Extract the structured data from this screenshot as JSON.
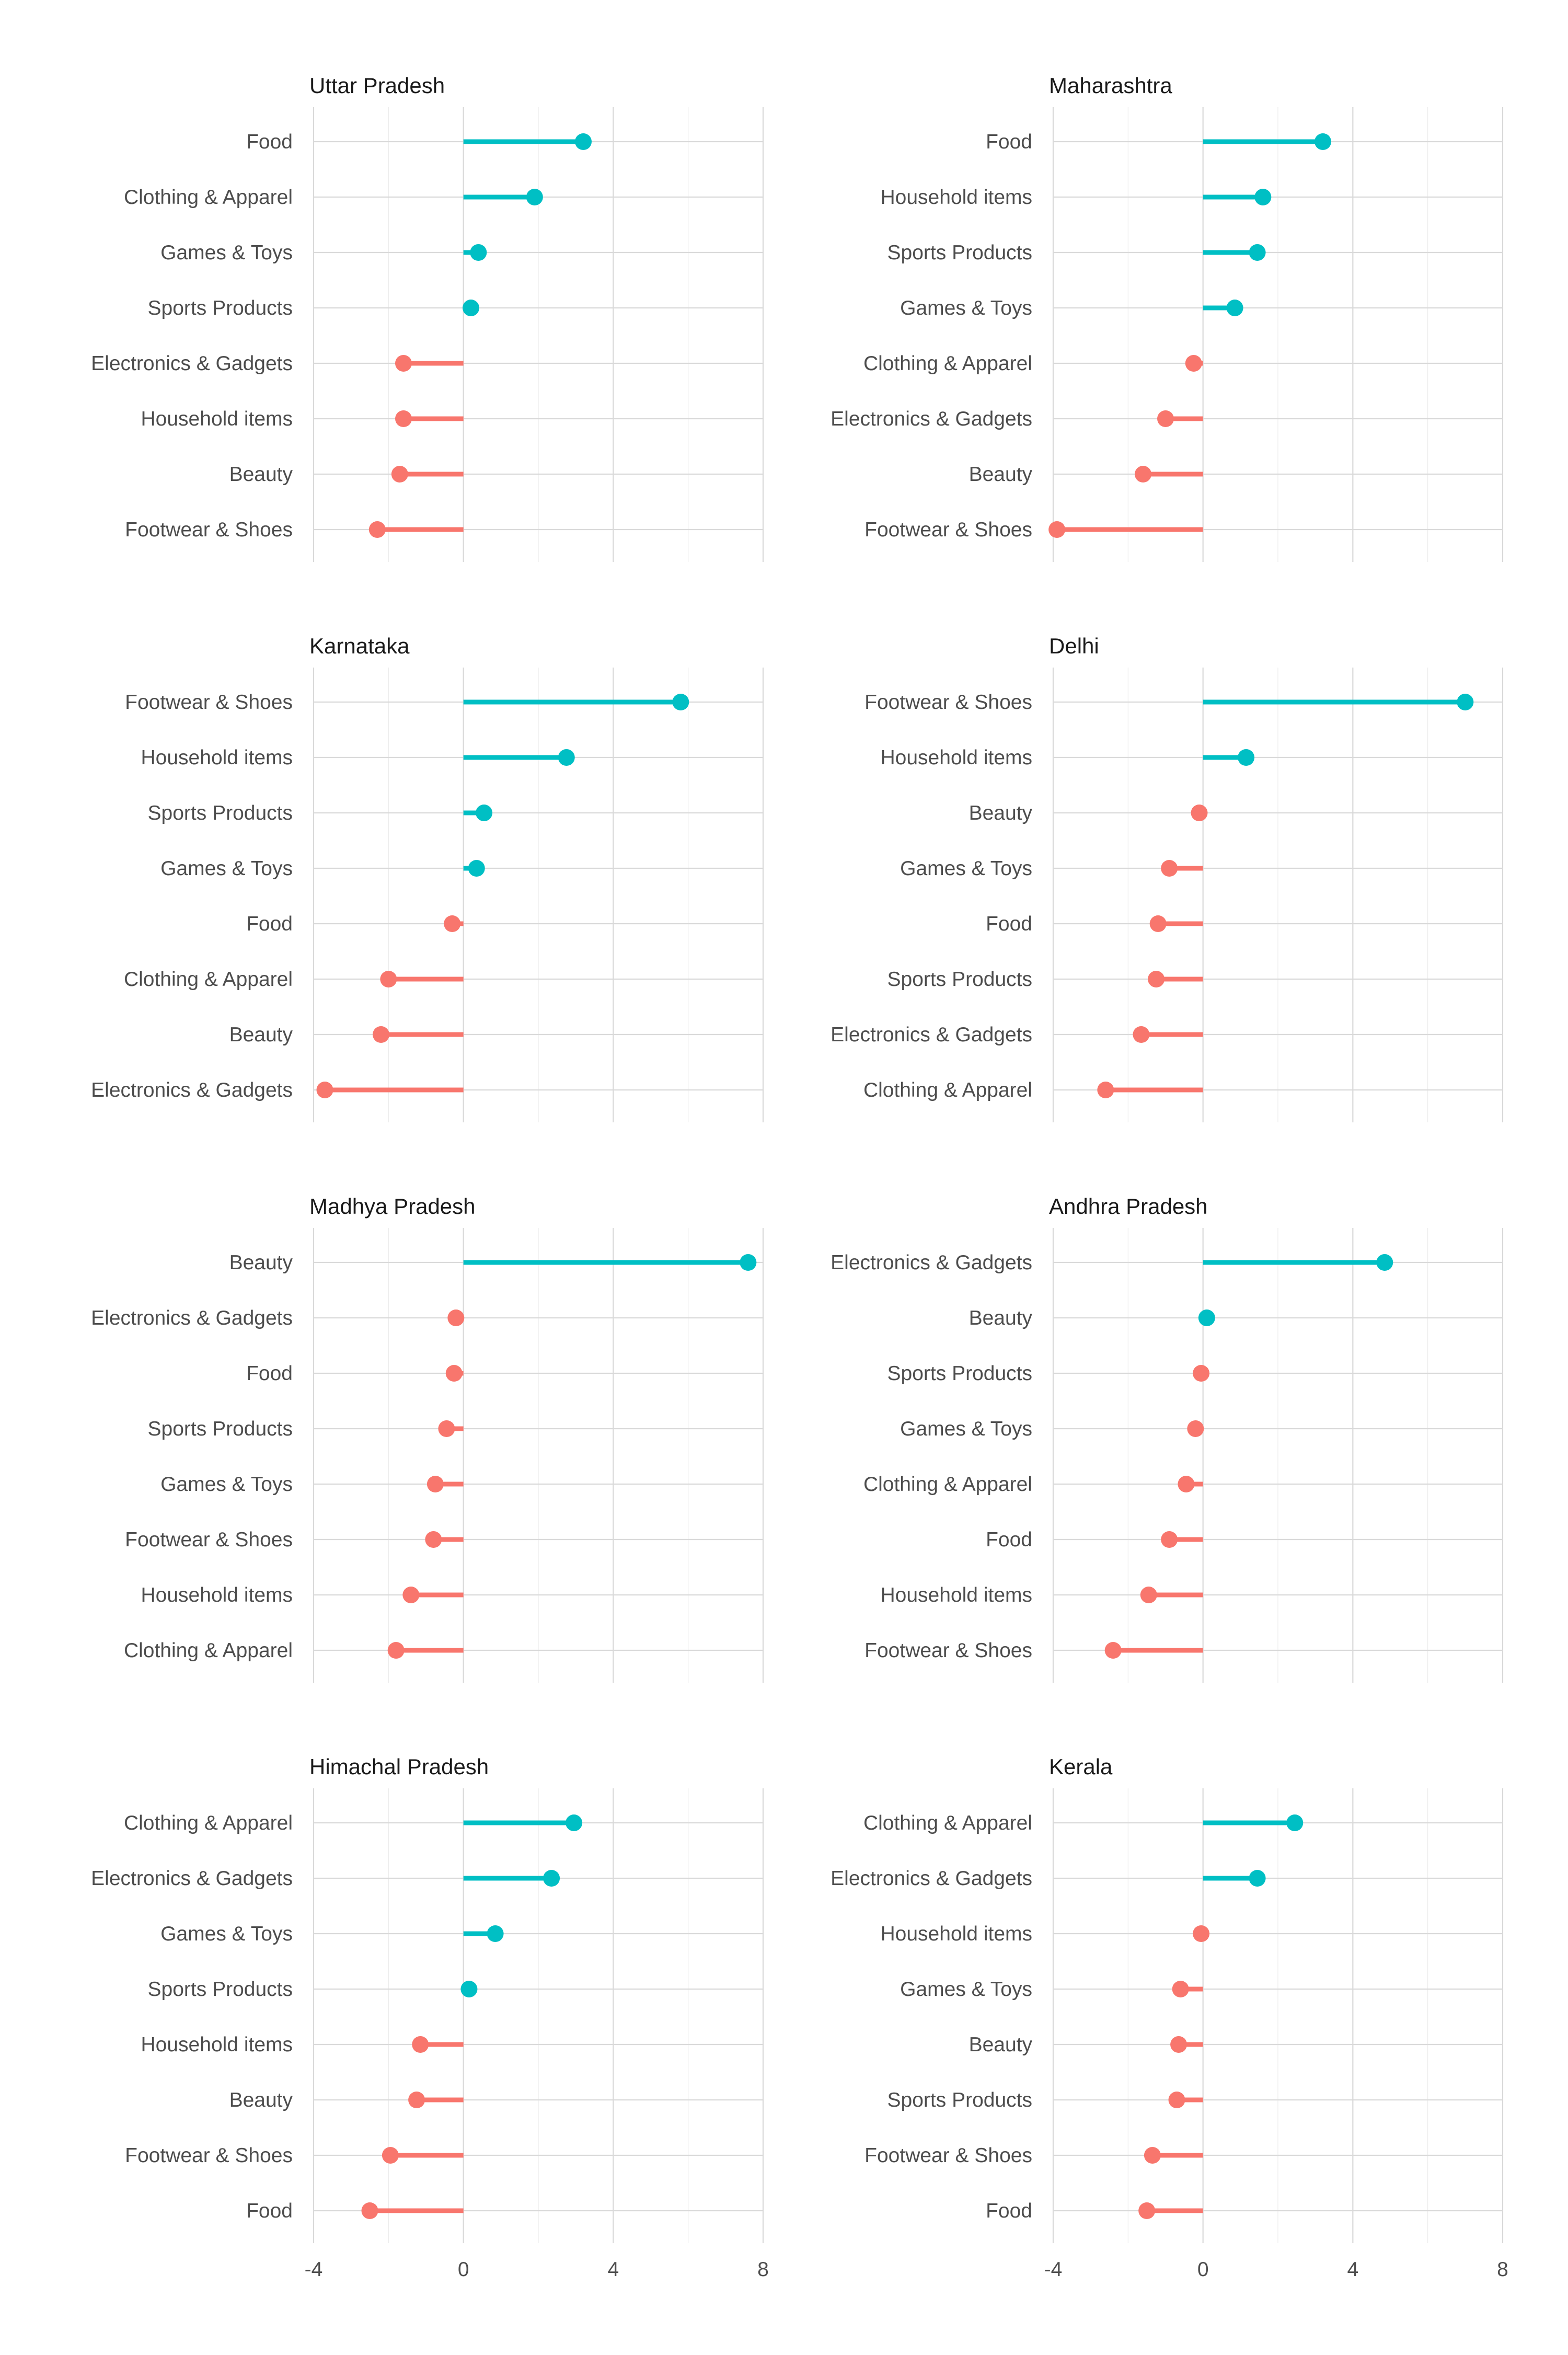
{
  "chart_data": {
    "type": "lollipop",
    "xlim": [
      -4,
      8
    ],
    "x_ticks": [
      -4,
      0,
      4,
      8
    ],
    "grid": true,
    "colors": {
      "positive": "#00BFC4",
      "negative": "#F8766D"
    },
    "panels": [
      {
        "title": "Uttar Pradesh",
        "categories": [
          "Food",
          "Clothing & Apparel",
          "Games & Toys",
          "Sports Products",
          "Electronics & Gadgets",
          "Household items",
          "Beauty",
          "Footwear & Shoes"
        ],
        "values": [
          3.2,
          1.9,
          0.4,
          0.2,
          -1.6,
          -1.6,
          -1.7,
          -2.3
        ]
      },
      {
        "title": "Maharashtra",
        "categories": [
          "Food",
          "Household items",
          "Sports Products",
          "Games & Toys",
          "Clothing & Apparel",
          "Electronics & Gadgets",
          "Beauty",
          "Footwear & Shoes"
        ],
        "values": [
          3.2,
          1.6,
          1.45,
          0.85,
          -0.25,
          -1.0,
          -1.6,
          -3.9
        ]
      },
      {
        "title": "Karnataka",
        "categories": [
          "Footwear & Shoes",
          "Household items",
          "Sports Products",
          "Games & Toys",
          "Food",
          "Clothing & Apparel",
          "Beauty",
          "Electronics & Gadgets"
        ],
        "values": [
          5.8,
          2.75,
          0.55,
          0.35,
          -0.3,
          -2.0,
          -2.2,
          -3.7
        ]
      },
      {
        "title": "Delhi",
        "categories": [
          "Footwear & Shoes",
          "Household items",
          "Beauty",
          "Games & Toys",
          "Food",
          "Sports Products",
          "Electronics & Gadgets",
          "Clothing & Apparel"
        ],
        "values": [
          7.0,
          1.15,
          -0.1,
          -0.9,
          -1.2,
          -1.25,
          -1.65,
          -2.6
        ]
      },
      {
        "title": "Madhya Pradesh",
        "categories": [
          "Beauty",
          "Electronics & Gadgets",
          "Food",
          "Sports Products",
          "Games & Toys",
          "Footwear & Shoes",
          "Household items",
          "Clothing & Apparel"
        ],
        "values": [
          7.6,
          -0.2,
          -0.25,
          -0.45,
          -0.75,
          -0.8,
          -1.4,
          -1.8
        ]
      },
      {
        "title": "Andhra Pradesh",
        "categories": [
          "Electronics & Gadgets",
          "Beauty",
          "Sports Products",
          "Games & Toys",
          "Clothing & Apparel",
          "Food",
          "Household items",
          "Footwear & Shoes"
        ],
        "values": [
          4.85,
          0.1,
          -0.05,
          -0.2,
          -0.45,
          -0.9,
          -1.45,
          -2.4
        ]
      },
      {
        "title": "Himachal Pradesh",
        "categories": [
          "Clothing & Apparel",
          "Electronics & Gadgets",
          "Games & Toys",
          "Sports Products",
          "Household items",
          "Beauty",
          "Footwear & Shoes",
          "Food"
        ],
        "values": [
          2.95,
          2.35,
          0.85,
          0.15,
          -1.15,
          -1.25,
          -1.95,
          -2.5
        ]
      },
      {
        "title": "Kerala",
        "categories": [
          "Clothing & Apparel",
          "Electronics & Gadgets",
          "Household items",
          "Games & Toys",
          "Beauty",
          "Sports Products",
          "Footwear & Shoes",
          "Food"
        ],
        "values": [
          2.45,
          1.45,
          -0.05,
          -0.6,
          -0.65,
          -0.7,
          -1.35,
          -1.5
        ]
      }
    ]
  }
}
